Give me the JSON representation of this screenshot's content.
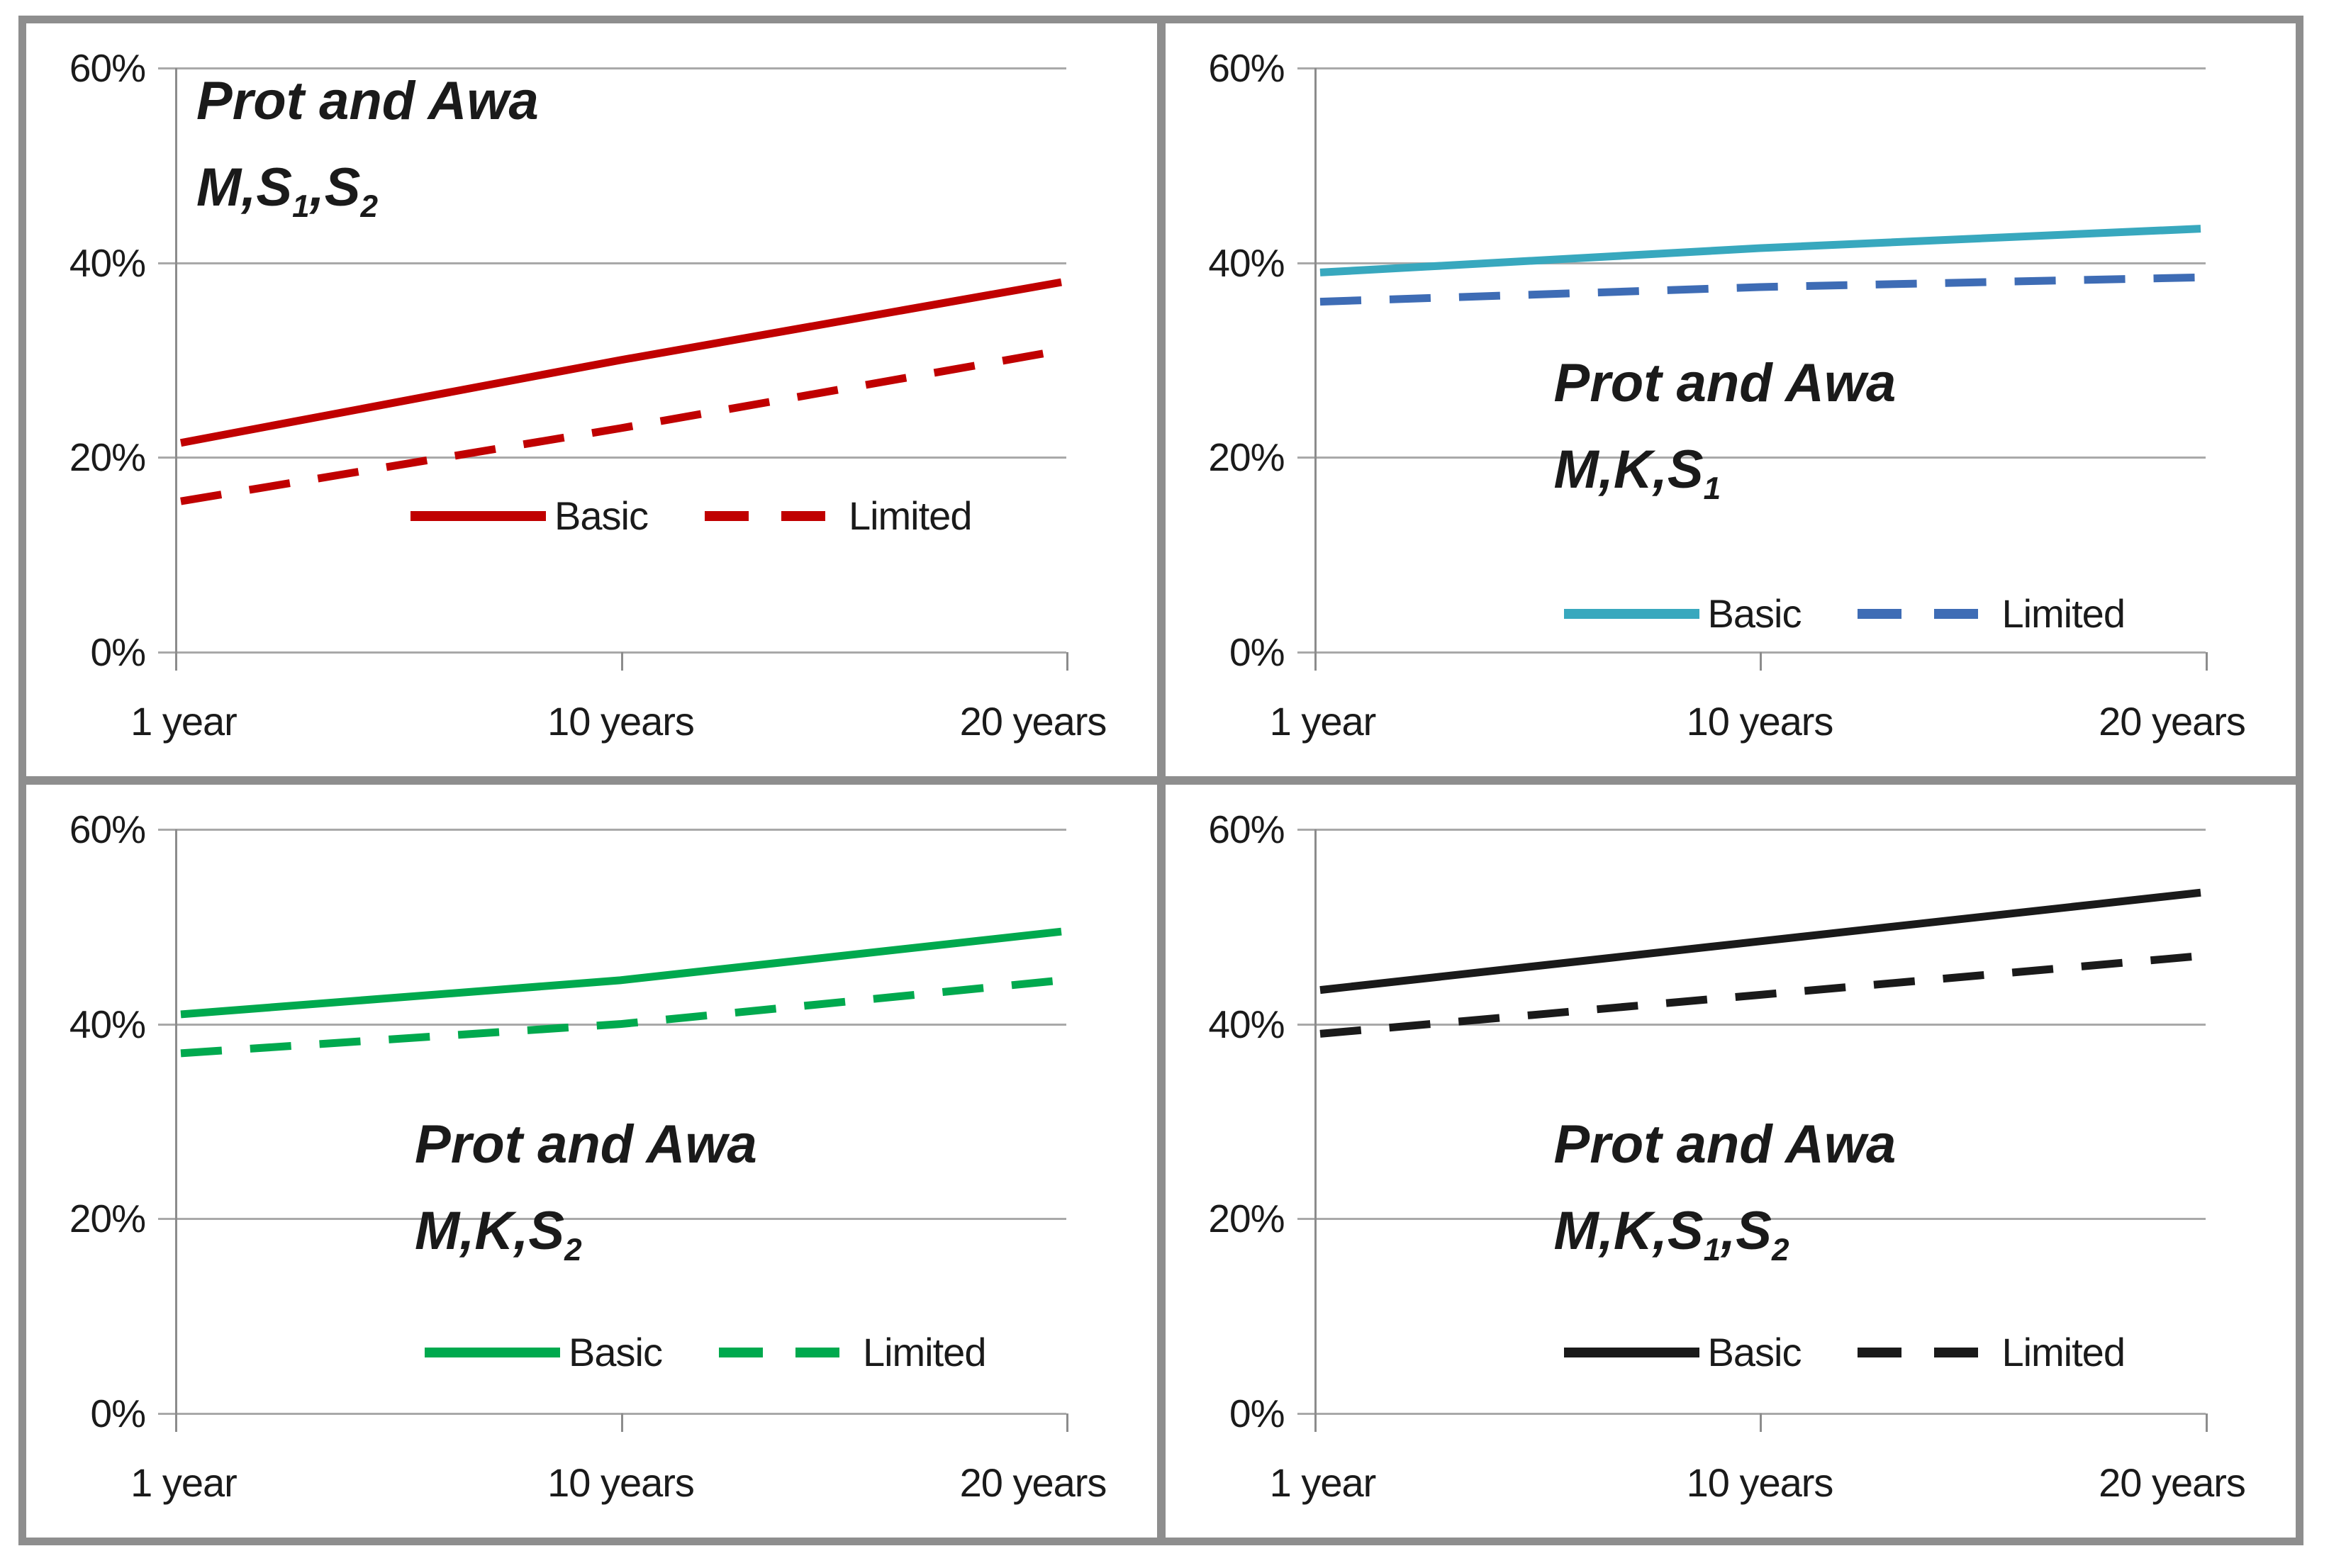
{
  "axes": {
    "y_tick_labels": [
      "60%",
      "40%",
      "20%",
      "0%"
    ],
    "y_tick_values": [
      60,
      40,
      20,
      0
    ],
    "x_tick_labels": [
      "1 year",
      "10 years",
      "20 years"
    ]
  },
  "legend_labels": {
    "basic": "Basic",
    "limited": "Limited"
  },
  "colors": {
    "red": "#c00000",
    "teal": "#38a8be",
    "blue": "#3e6cb5",
    "green": "#00a94e",
    "black": "#1a1a1a",
    "gridline": "#a9a9a9",
    "frame": "#8e8e8e"
  },
  "chart_data": [
    {
      "type": "line",
      "panel": "top-left",
      "title": "Prot and Awa",
      "subtitle": "M,S_1,S_2",
      "categories": [
        "1 year",
        "10 years",
        "20 years"
      ],
      "ylim": [
        0,
        60
      ],
      "yticks": [
        0,
        20,
        40,
        60
      ],
      "grid": true,
      "legend_position": "inside-middle",
      "series": [
        {
          "name": "Basic",
          "style": "solid",
          "color": "#c00000",
          "values": [
            21.5,
            30,
            38
          ]
        },
        {
          "name": "Limited",
          "style": "dashed",
          "color": "#c00000",
          "values": [
            15.5,
            23,
            31
          ]
        }
      ]
    },
    {
      "type": "line",
      "panel": "top-right",
      "title": "Prot and Awa",
      "subtitle": "M,K,S_1",
      "categories": [
        "1 year",
        "10 years",
        "20 years"
      ],
      "ylim": [
        0,
        60
      ],
      "yticks": [
        0,
        20,
        40,
        60
      ],
      "grid": true,
      "legend_position": "inside-bottom",
      "series": [
        {
          "name": "Basic",
          "style": "solid",
          "color": "#38a8be",
          "values": [
            39,
            41.5,
            43.5
          ]
        },
        {
          "name": "Limited",
          "style": "dashed",
          "color": "#3e6cb5",
          "values": [
            36,
            37.5,
            38.5
          ]
        }
      ]
    },
    {
      "type": "line",
      "panel": "bottom-left",
      "title": "Prot and Awa",
      "subtitle": "M,K,S_2",
      "categories": [
        "1 year",
        "10 years",
        "20 years"
      ],
      "ylim": [
        0,
        60
      ],
      "yticks": [
        0,
        20,
        40,
        60
      ],
      "grid": true,
      "legend_position": "inside-bottom",
      "series": [
        {
          "name": "Basic",
          "style": "solid",
          "color": "#00a94e",
          "values": [
            41,
            44.5,
            49.5
          ]
        },
        {
          "name": "Limited",
          "style": "dashed",
          "color": "#00a94e",
          "values": [
            37,
            40,
            44.5
          ]
        }
      ]
    },
    {
      "type": "line",
      "panel": "bottom-right",
      "title": "Prot and Awa",
      "subtitle": "M,K,S_1,S_2",
      "categories": [
        "1 year",
        "10 years",
        "20 years"
      ],
      "ylim": [
        0,
        60
      ],
      "yticks": [
        0,
        20,
        40,
        60
      ],
      "grid": true,
      "legend_position": "inside-bottom",
      "series": [
        {
          "name": "Basic",
          "style": "solid",
          "color": "#1a1a1a",
          "values": [
            43.5,
            48.5,
            53.5
          ]
        },
        {
          "name": "Limited",
          "style": "dashed",
          "color": "#1a1a1a",
          "values": [
            39,
            43,
            47
          ]
        }
      ]
    }
  ]
}
